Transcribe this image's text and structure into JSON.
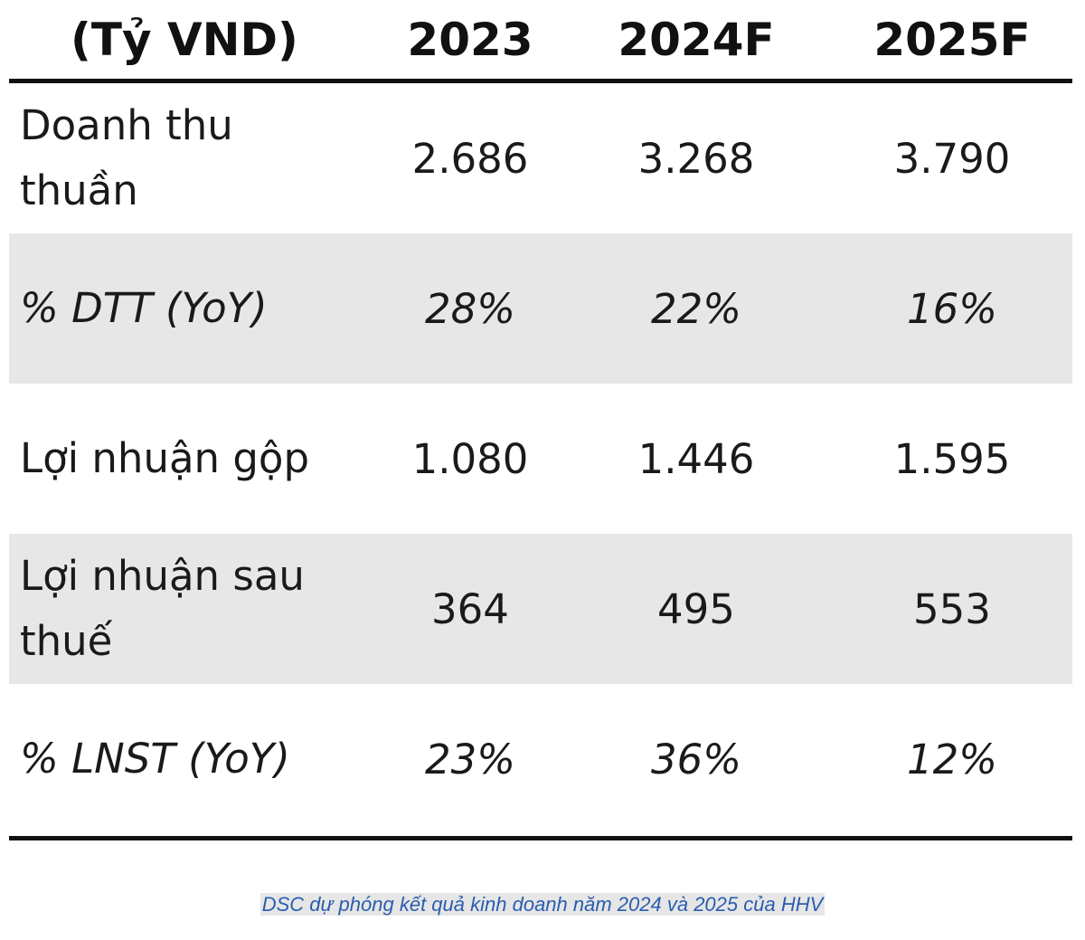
{
  "chart_data": {
    "type": "table",
    "columns": [
      "(Tỷ VND)",
      "2023",
      "2024F",
      "2025F"
    ],
    "rows": [
      {
        "label_lines": [
          "Doanh thu",
          "thuần"
        ],
        "values": [
          "2.686",
          "3.268",
          "3.790"
        ],
        "italic": false,
        "shaded": false
      },
      {
        "label_lines": [
          "% DTT (YoY)"
        ],
        "values": [
          "28%",
          "22%",
          "16%"
        ],
        "italic": true,
        "shaded": true
      },
      {
        "label_lines": [
          "Lợi nhuận gộp"
        ],
        "values": [
          "1.080",
          "1.446",
          "1.595"
        ],
        "italic": false,
        "shaded": false
      },
      {
        "label_lines": [
          "Lợi nhuận sau",
          "thuế"
        ],
        "values": [
          "364",
          "495",
          "553"
        ],
        "italic": false,
        "shaded": true
      },
      {
        "label_lines": [
          "% LNST (YoY)"
        ],
        "values": [
          "23%",
          "36%",
          "12%"
        ],
        "italic": true,
        "shaded": false
      }
    ]
  },
  "caption": "DSC dự phóng kết quả kinh doanh năm 2024 và 2025 của HHV",
  "colors": {
    "shaded_row": "#e7e7e7",
    "rule": "#111111",
    "caption_text": "#2a5db0",
    "caption_highlight": "#e6e6e6"
  }
}
